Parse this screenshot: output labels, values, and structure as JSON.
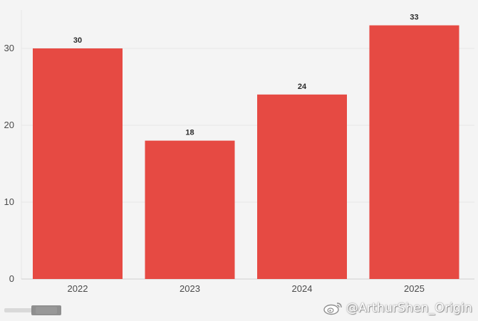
{
  "chart_data": {
    "type": "bar",
    "categories": [
      "2022",
      "2023",
      "2024",
      "2025"
    ],
    "values": [
      30,
      18,
      24,
      33
    ],
    "data_labels": [
      "30",
      "18",
      "24",
      "33"
    ],
    "title": "",
    "xlabel": "",
    "ylabel": "",
    "ylim": [
      0,
      34
    ],
    "yticks": [
      0,
      10,
      20,
      30
    ],
    "ytick_labels": [
      "0",
      "10",
      "20",
      "30"
    ],
    "grid": true,
    "legend": "none",
    "colors": {
      "bar": "#e64a43",
      "background": "#f4f4f4",
      "grid": "#e6e6e6",
      "axis": "#cfcfcf"
    }
  },
  "watermark": {
    "text": "@ArthurShen_Origin",
    "icon": "weibo-icon"
  }
}
